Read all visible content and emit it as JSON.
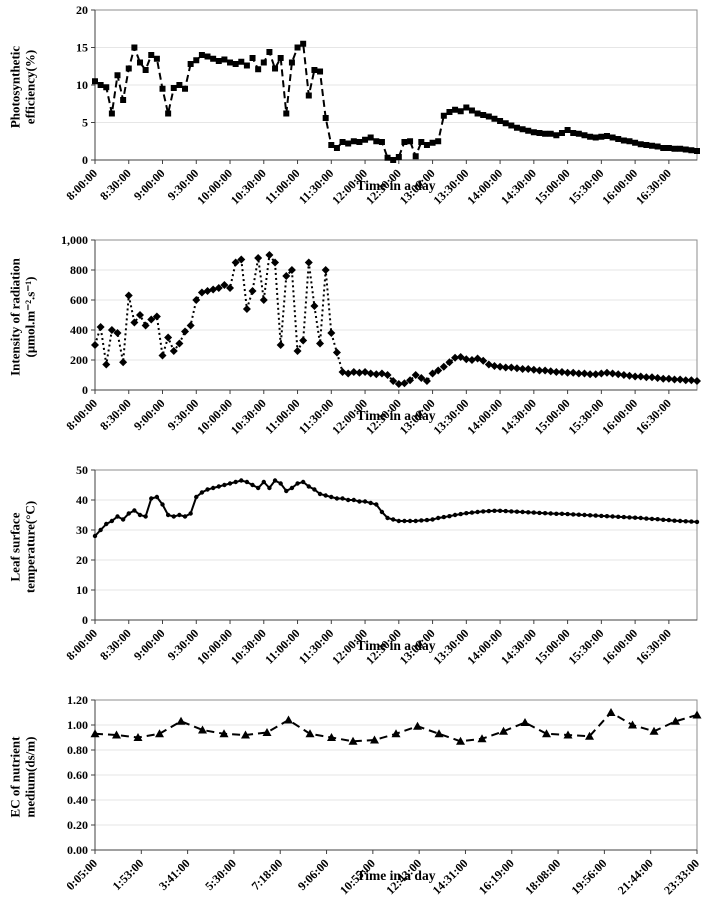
{
  "chart_data": [
    {
      "name": "photosynthetic-efficiency",
      "type": "line",
      "marker": "square",
      "dash": "7,4",
      "line_color": "#000000",
      "ylabel": "Photosynthetic\nefficiency(%)",
      "xlabel": "Time in a day",
      "ylim": [
        0,
        20
      ],
      "ytick_vals": [
        0,
        5,
        10,
        15,
        20
      ],
      "ytick_labels": [
        "0",
        "5",
        "10",
        "15",
        "20"
      ],
      "xtick_labels": [
        "8:00:00",
        "8:30:00",
        "9:00:00",
        "9:30:00",
        "10:00:00",
        "10:30:00",
        "11:00:00",
        "11:30:00",
        "12:00:00",
        "12:30:00",
        "13:00:00",
        "13:30:00",
        "14:00:00",
        "14:30:00",
        "15:00:00",
        "15:30:00",
        "16:00:00",
        "16:30:00"
      ],
      "tick_every": 6,
      "x_step_minutes": 5,
      "values": [
        10.5,
        10.0,
        9.7,
        6.2,
        11.3,
        8.0,
        12.2,
        15.0,
        13.0,
        12.0,
        14.0,
        13.5,
        9.5,
        6.2,
        9.6,
        10.0,
        9.5,
        12.8,
        13.3,
        14.0,
        13.8,
        13.5,
        13.2,
        13.4,
        13.0,
        12.8,
        13.1,
        12.6,
        13.6,
        12.1,
        13.0,
        14.4,
        12.2,
        13.6,
        6.2,
        13.0,
        15.0,
        15.5,
        8.6,
        12.0,
        11.8,
        5.6,
        2.0,
        1.6,
        2.4,
        2.2,
        2.5,
        2.4,
        2.7,
        3.0,
        2.5,
        2.4,
        0.3,
        0.0,
        0.4,
        2.4,
        2.5,
        0.5,
        2.4,
        2.0,
        2.3,
        2.5,
        5.9,
        6.4,
        6.7,
        6.5,
        7.0,
        6.6,
        6.2,
        6.0,
        5.8,
        5.5,
        5.2,
        4.9,
        4.6,
        4.3,
        4.1,
        3.9,
        3.7,
        3.6,
        3.5,
        3.5,
        3.3,
        3.6,
        4.0,
        3.6,
        3.5,
        3.3,
        3.1,
        3.0,
        3.1,
        3.2,
        3.0,
        2.8,
        2.6,
        2.5,
        2.3,
        2.1,
        2.0,
        1.9,
        1.8,
        1.6,
        1.6,
        1.5,
        1.5,
        1.4,
        1.3,
        1.2
      ]
    },
    {
      "name": "radiation-intensity",
      "type": "line",
      "marker": "diamond",
      "dash": "2,3",
      "line_color": "#000000",
      "ylabel": "Intensity of radiation\n(μmol.m⁻².s⁻¹)",
      "xlabel": "Time in a day",
      "ylim": [
        0,
        1000
      ],
      "ytick_vals": [
        0,
        200,
        400,
        600,
        800,
        1000
      ],
      "ytick_labels": [
        "0",
        "200",
        "400",
        "600",
        "800",
        "1,000"
      ],
      "xtick_labels": [
        "8:00:00",
        "8:30:00",
        "9:00:00",
        "9:30:00",
        "10:00:00",
        "10:30:00",
        "11:00:00",
        "11:30:00",
        "12:00:00",
        "12:30:00",
        "13:00:00",
        "13:30:00",
        "14:00:00",
        "14:30:00",
        "15:00:00",
        "15:30:00",
        "16:00:00",
        "16:30:00"
      ],
      "tick_every": 6,
      "x_step_minutes": 5,
      "values": [
        300,
        420,
        170,
        400,
        380,
        185,
        630,
        450,
        500,
        430,
        470,
        490,
        230,
        350,
        260,
        310,
        390,
        430,
        600,
        650,
        660,
        670,
        680,
        700,
        680,
        850,
        870,
        540,
        660,
        880,
        600,
        900,
        850,
        300,
        760,
        800,
        260,
        330,
        850,
        560,
        310,
        800,
        380,
        250,
        120,
        110,
        120,
        115,
        120,
        110,
        105,
        110,
        100,
        60,
        40,
        45,
        65,
        100,
        80,
        60,
        110,
        130,
        155,
        185,
        215,
        220,
        205,
        200,
        210,
        195,
        170,
        160,
        155,
        150,
        150,
        145,
        140,
        140,
        135,
        130,
        130,
        125,
        120,
        120,
        115,
        115,
        110,
        110,
        105,
        105,
        110,
        115,
        110,
        105,
        100,
        95,
        90,
        90,
        85,
        85,
        80,
        75,
        75,
        70,
        70,
        65,
        65,
        60
      ]
    },
    {
      "name": "leaf-surface-temperature",
      "type": "line",
      "marker": "dot",
      "dash": "",
      "line_color": "#000000",
      "ylabel": "Leaf surface\ntemperature(°C)",
      "xlabel": "Time in a day",
      "ylim": [
        0,
        50
      ],
      "ytick_vals": [
        0,
        10,
        20,
        30,
        40,
        50
      ],
      "ytick_labels": [
        "0",
        "10",
        "20",
        "30",
        "40",
        "50"
      ],
      "xtick_labels": [
        "8:00:00",
        "8:30:00",
        "9:00:00",
        "9:30:00",
        "10:00:00",
        "10:30:00",
        "11:00:00",
        "11:30:00",
        "12:00:00",
        "12:30:00",
        "13:00:00",
        "13:30:00",
        "14:00:00",
        "14:30:00",
        "15:00:00",
        "15:30:00",
        "16:00:00",
        "16:30:00"
      ],
      "tick_every": 6,
      "x_step_minutes": 5,
      "values": [
        28,
        30,
        32,
        33,
        34.5,
        33.5,
        35.5,
        36.5,
        35,
        34.5,
        40.5,
        41,
        38.5,
        35,
        34.5,
        35,
        34.5,
        35.5,
        41,
        42.5,
        43.5,
        44,
        44.5,
        45,
        45.5,
        46,
        46.5,
        46,
        45,
        44,
        46,
        44,
        46.5,
        45.5,
        43,
        44,
        45.5,
        46,
        44.5,
        43.5,
        42,
        41.5,
        41,
        40.5,
        40.5,
        40,
        40,
        39.5,
        39.5,
        39,
        38.5,
        36,
        34,
        33.5,
        33,
        33,
        33,
        33,
        33.2,
        33.3,
        33.5,
        34,
        34.3,
        34.6,
        35,
        35.3,
        35.6,
        35.8,
        36,
        36.2,
        36.3,
        36.4,
        36.4,
        36.3,
        36.2,
        36.1,
        36,
        35.9,
        35.8,
        35.7,
        35.6,
        35.5,
        35.4,
        35.4,
        35.3,
        35.2,
        35.1,
        35,
        34.9,
        34.8,
        34.7,
        34.6,
        34.5,
        34.4,
        34.3,
        34.2,
        34.1,
        34,
        33.8,
        33.7,
        33.6,
        33.4,
        33.3,
        33.1,
        33,
        32.9,
        32.8,
        32.7
      ]
    },
    {
      "name": "ec-nutrient-medium",
      "type": "line",
      "marker": "triangle",
      "dash": "8,5",
      "line_color": "#000000",
      "ylabel": "EC of nutrient\nmedium(ds/m)",
      "xlabel": "Time in a day",
      "ylim": [
        0,
        1.2
      ],
      "ytick_vals": [
        0,
        0.2,
        0.4,
        0.6,
        0.8,
        1.0,
        1.2
      ],
      "ytick_labels": [
        "0.00",
        "0.20",
        "0.40",
        "0.60",
        "0.80",
        "1.00",
        "1.20"
      ],
      "xtick_labels": [
        "0:05:00",
        "1:53:00",
        "3:41:00",
        "5:30:00",
        "7:18:00",
        "9:06:00",
        "10:55:00",
        "12:43:00",
        "14:31:00",
        "16:19:00",
        "18:08:00",
        "19:56:00",
        "21:44:00",
        "23:33:00"
      ],
      "values": [
        0.93,
        0.92,
        0.9,
        0.93,
        1.03,
        0.96,
        0.93,
        0.92,
        0.94,
        1.04,
        0.93,
        0.9,
        0.87,
        0.88,
        0.93,
        0.99,
        0.93,
        0.87,
        0.89,
        0.95,
        1.02,
        0.93,
        0.92,
        0.91,
        1.1,
        1.0,
        0.95,
        1.03,
        1.08
      ]
    }
  ]
}
